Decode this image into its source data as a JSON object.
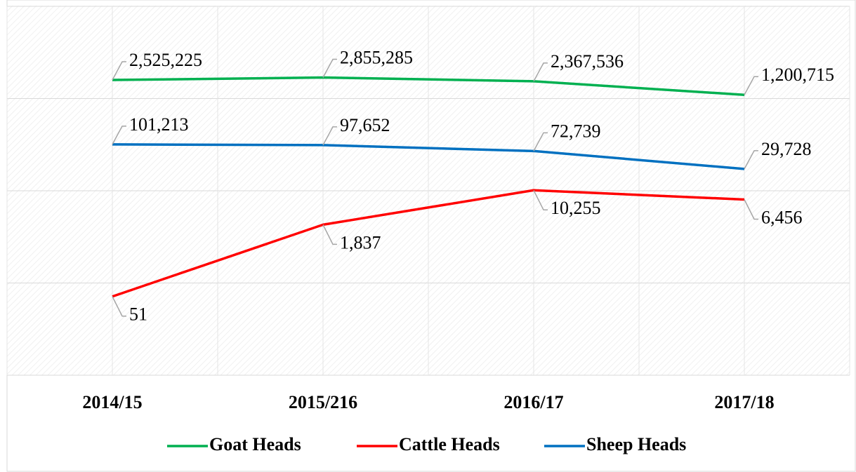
{
  "chart_data": {
    "type": "line",
    "categories": [
      "2014/15",
      "2015/216",
      "2016/17",
      "2017/18"
    ],
    "series": [
      {
        "name": "Goat Heads",
        "color": "#00b050",
        "values": [
          2525225,
          2855285,
          2367536,
          1200715
        ],
        "value_labels": [
          "2,525,225",
          "2,855,285",
          "2,367,536",
          "1,200,715"
        ]
      },
      {
        "name": "Cattle Heads",
        "color": "#ff0000",
        "values": [
          51,
          1837,
          10255,
          6456
        ],
        "value_labels": [
          "51",
          "1,837",
          "10,255",
          "6,456"
        ]
      },
      {
        "name": "Sheep Heads",
        "color": "#0070c0",
        "values": [
          101213,
          97652,
          72739,
          29728
        ],
        "value_labels": [
          "101,213",
          "97,652",
          "72,739",
          "29,728"
        ]
      }
    ],
    "log_scale": true,
    "ylim": [
      1,
      100000000
    ],
    "yticks": [
      1,
      100,
      10000,
      1000000,
      100000000
    ],
    "grid": true
  }
}
